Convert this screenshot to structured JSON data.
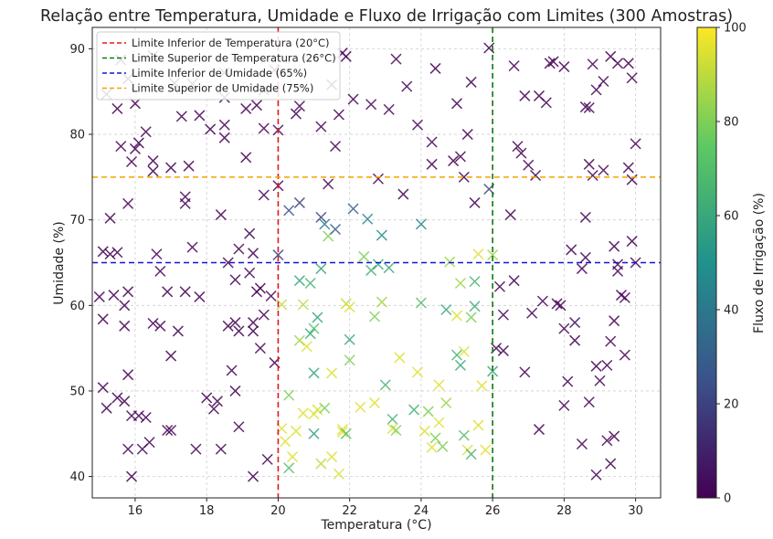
{
  "chart_data": {
    "type": "scatter",
    "title": "Relação entre Temperatura, Umidade e Fluxo de Irrigação com Limites (300 Amostras)",
    "xlabel": "Temperatura (°C)",
    "ylabel": "Umidade (%)",
    "xlim": [
      14.8,
      30.7
    ],
    "ylim": [
      37.5,
      92.5
    ],
    "xticks": [
      16,
      18,
      20,
      22,
      24,
      26,
      28,
      30
    ],
    "yticks": [
      40,
      50,
      60,
      70,
      80,
      90
    ],
    "grid": true,
    "marker": "x",
    "colorbar": {
      "label": "Fluxo de Irrigação (%)",
      "range": [
        0,
        100
      ],
      "ticks": [
        0,
        20,
        40,
        60,
        80,
        100
      ],
      "colormap": "viridis",
      "colors": [
        "#440154",
        "#3b528b",
        "#21918c",
        "#5ec962",
        "#fde725"
      ]
    },
    "legend": {
      "position": "top-left",
      "entries": [
        {
          "label": "Limite Inferior de Temperatura (20°C)",
          "color": "#e8141c"
        },
        {
          "label": "Limite Superior de Temperatura (26°C)",
          "color": "#0c7a0c"
        },
        {
          "label": "Limite Inferior de Umidade (65%)",
          "color": "#1414d4"
        },
        {
          "label": "Limite Superior de Umidade (75%)",
          "color": "#f5a400"
        }
      ]
    },
    "thresholds": {
      "temperature_lower": 20,
      "temperature_upper": 26,
      "humidity_lower": 65,
      "humidity_upper": 75
    },
    "points": [
      [
        15.0,
        61.0,
        0
      ],
      [
        15.1,
        50.4,
        0
      ],
      [
        15.1,
        58.4,
        0
      ],
      [
        15.1,
        66.3,
        0
      ],
      [
        15.2,
        84.7,
        0
      ],
      [
        15.2,
        48.0,
        0
      ],
      [
        15.3,
        66.0,
        0
      ],
      [
        15.3,
        70.2,
        0
      ],
      [
        15.4,
        61.2,
        0
      ],
      [
        15.5,
        83.0,
        0
      ],
      [
        15.5,
        49.2,
        0
      ],
      [
        15.5,
        66.2,
        0
      ],
      [
        15.6,
        78.6,
        0
      ],
      [
        15.7,
        48.8,
        0
      ],
      [
        15.7,
        60.0,
        0
      ],
      [
        15.7,
        57.6,
        0
      ],
      [
        15.8,
        43.2,
        0
      ],
      [
        15.8,
        51.9,
        0
      ],
      [
        15.8,
        71.9,
        0
      ],
      [
        15.8,
        61.6,
        0
      ],
      [
        15.9,
        47.1,
        0
      ],
      [
        15.9,
        40.0,
        0
      ],
      [
        15.9,
        76.8,
        0
      ],
      [
        16.0,
        83.6,
        0
      ],
      [
        16.0,
        78.3,
        0
      ],
      [
        16.1,
        79.0,
        0
      ],
      [
        16.1,
        47.1,
        0
      ],
      [
        16.2,
        43.2,
        0
      ],
      [
        16.3,
        46.9,
        0
      ],
      [
        16.3,
        80.3,
        0
      ],
      [
        16.4,
        44.0,
        0
      ],
      [
        16.5,
        57.9,
        0
      ],
      [
        16.5,
        76.9,
        0
      ],
      [
        16.5,
        75.7,
        0
      ],
      [
        16.6,
        66.0,
        0
      ],
      [
        16.7,
        64.0,
        0
      ],
      [
        16.7,
        57.6,
        0
      ],
      [
        16.9,
        45.4,
        0
      ],
      [
        16.9,
        61.6,
        0
      ],
      [
        17.0,
        54.1,
        0
      ],
      [
        17.0,
        76.1,
        0
      ],
      [
        17.0,
        45.4,
        0
      ],
      [
        17.2,
        57.0,
        0
      ],
      [
        17.3,
        82.1,
        0
      ],
      [
        17.4,
        71.9,
        0
      ],
      [
        17.4,
        72.7,
        0
      ],
      [
        17.4,
        61.6,
        0
      ],
      [
        17.5,
        76.3,
        0
      ],
      [
        17.6,
        66.8,
        0
      ],
      [
        17.7,
        43.2,
        0
      ],
      [
        17.8,
        82.2,
        0
      ],
      [
        17.8,
        61.0,
        0
      ],
      [
        18.0,
        49.2,
        0
      ],
      [
        18.1,
        80.6,
        0
      ],
      [
        18.2,
        47.9,
        0
      ],
      [
        18.3,
        48.8,
        0
      ],
      [
        18.4,
        70.6,
        0
      ],
      [
        18.4,
        43.2,
        0
      ],
      [
        18.5,
        84.3,
        0
      ],
      [
        18.5,
        81.1,
        0
      ],
      [
        18.5,
        79.6,
        0
      ],
      [
        18.6,
        57.6,
        0
      ],
      [
        18.6,
        65.0,
        0
      ],
      [
        18.7,
        52.4,
        0
      ],
      [
        18.8,
        58.0,
        0
      ],
      [
        18.8,
        50.0,
        0
      ],
      [
        18.8,
        63.0,
        0
      ],
      [
        18.9,
        45.8,
        0
      ],
      [
        18.9,
        57.0,
        0
      ],
      [
        18.9,
        66.6,
        0
      ],
      [
        19.1,
        83.0,
        0
      ],
      [
        19.1,
        77.3,
        0
      ],
      [
        19.2,
        68.4,
        0
      ],
      [
        19.2,
        63.8,
        0
      ],
      [
        19.3,
        40.0,
        0
      ],
      [
        19.3,
        57.0,
        0
      ],
      [
        19.3,
        66.1,
        0
      ],
      [
        19.3,
        58.0,
        0
      ],
      [
        19.4,
        61.6,
        0
      ],
      [
        19.5,
        55.0,
        0
      ],
      [
        19.5,
        62.0,
        0
      ],
      [
        19.6,
        72.9,
        0
      ],
      [
        19.6,
        80.7,
        0
      ],
      [
        19.6,
        58.9,
        0
      ],
      [
        19.7,
        42.0,
        0
      ],
      [
        19.8,
        61.1,
        0
      ],
      [
        19.9,
        53.3,
        0
      ],
      [
        20.0,
        65.9,
        20
      ],
      [
        20.0,
        74.0,
        0
      ],
      [
        20.0,
        80.5,
        0
      ],
      [
        20.1,
        60.1,
        90
      ],
      [
        20.1,
        45.6,
        95
      ],
      [
        20.2,
        44.1,
        95
      ],
      [
        20.3,
        71.1,
        25
      ],
      [
        20.3,
        41.0,
        70
      ],
      [
        20.3,
        49.5,
        80
      ],
      [
        20.4,
        42.3,
        95
      ],
      [
        20.5,
        45.3,
        95
      ],
      [
        20.6,
        62.9,
        60
      ],
      [
        20.6,
        55.9,
        85
      ],
      [
        20.6,
        72.0,
        20
      ],
      [
        20.7,
        60.1,
        90
      ],
      [
        20.7,
        47.4,
        95
      ],
      [
        20.8,
        55.2,
        95
      ],
      [
        20.9,
        56.7,
        60
      ],
      [
        20.9,
        62.6,
        65
      ],
      [
        21.0,
        57.3,
        70
      ],
      [
        21.0,
        47.3,
        95
      ],
      [
        21.0,
        45.0,
        55
      ],
      [
        21.0,
        52.1,
        60
      ],
      [
        21.1,
        47.8,
        95
      ],
      [
        21.1,
        58.6,
        60
      ],
      [
        21.2,
        64.3,
        60
      ],
      [
        21.2,
        70.3,
        20
      ],
      [
        21.2,
        41.5,
        90
      ],
      [
        21.3,
        48.0,
        80
      ],
      [
        21.3,
        69.5,
        40
      ],
      [
        21.4,
        68.1,
        80
      ],
      [
        21.4,
        74.2,
        0
      ],
      [
        21.5,
        52.1,
        95
      ],
      [
        21.5,
        42.3,
        95
      ],
      [
        21.6,
        68.9,
        30
      ],
      [
        21.7,
        40.3,
        95
      ],
      [
        21.8,
        45.5,
        95
      ],
      [
        21.8,
        45.2,
        95
      ],
      [
        21.9,
        45.0,
        70
      ],
      [
        21.9,
        60.2,
        90
      ],
      [
        22.0,
        56.0,
        60
      ],
      [
        22.0,
        53.6,
        80
      ],
      [
        22.0,
        59.8,
        95
      ],
      [
        22.1,
        71.3,
        30
      ],
      [
        22.3,
        48.1,
        95
      ],
      [
        22.4,
        65.7,
        80
      ],
      [
        22.5,
        70.1,
        45
      ],
      [
        22.6,
        64.1,
        65
      ],
      [
        22.7,
        48.6,
        95
      ],
      [
        22.7,
        58.7,
        80
      ],
      [
        22.8,
        64.8,
        60
      ],
      [
        22.8,
        74.8,
        0
      ],
      [
        22.9,
        60.4,
        85
      ],
      [
        22.9,
        68.2,
        50
      ],
      [
        23.0,
        50.7,
        65
      ],
      [
        23.1,
        64.4,
        60
      ],
      [
        23.2,
        46.7,
        65
      ],
      [
        23.2,
        45.6,
        95
      ],
      [
        23.3,
        45.4,
        80
      ],
      [
        23.4,
        53.9,
        95
      ],
      [
        23.5,
        73.0,
        0
      ],
      [
        23.8,
        47.8,
        65
      ],
      [
        23.9,
        52.2,
        95
      ],
      [
        24.0,
        60.3,
        70
      ],
      [
        24.0,
        69.5,
        45
      ],
      [
        24.1,
        45.3,
        95
      ],
      [
        24.2,
        47.6,
        80
      ],
      [
        24.3,
        43.4,
        95
      ],
      [
        24.4,
        44.5,
        80
      ],
      [
        24.5,
        50.7,
        95
      ],
      [
        24.5,
        46.3,
        95
      ],
      [
        24.6,
        43.5,
        80
      ],
      [
        24.7,
        59.5,
        60
      ],
      [
        24.7,
        48.6,
        85
      ],
      [
        24.8,
        65.1,
        85
      ],
      [
        25.0,
        58.8,
        95
      ],
      [
        25.0,
        54.2,
        65
      ],
      [
        25.1,
        62.6,
        85
      ],
      [
        25.1,
        53.0,
        60
      ],
      [
        25.2,
        54.6,
        95
      ],
      [
        25.2,
        44.8,
        70
      ],
      [
        25.3,
        43.1,
        95
      ],
      [
        25.4,
        42.6,
        65
      ],
      [
        25.4,
        58.6,
        80
      ],
      [
        25.5,
        59.9,
        60
      ],
      [
        25.5,
        62.8,
        65
      ],
      [
        25.6,
        66.0,
        95
      ],
      [
        25.6,
        46.0,
        95
      ],
      [
        25.7,
        50.6,
        95
      ],
      [
        25.8,
        43.1,
        95
      ],
      [
        25.9,
        73.6,
        20
      ],
      [
        26.0,
        52.3,
        60
      ],
      [
        26.0,
        65.9,
        85
      ],
      [
        26.1,
        55.0,
        0
      ],
      [
        26.2,
        62.2,
        0
      ],
      [
        26.3,
        54.7,
        0
      ],
      [
        26.3,
        58.9,
        0
      ],
      [
        26.5,
        70.6,
        0
      ],
      [
        26.6,
        62.9,
        0
      ],
      [
        26.7,
        78.6,
        0
      ],
      [
        26.8,
        77.8,
        0
      ],
      [
        26.9,
        52.2,
        0
      ],
      [
        27.0,
        76.4,
        0
      ],
      [
        27.1,
        59.1,
        0
      ],
      [
        27.2,
        75.2,
        0
      ],
      [
        27.3,
        45.5,
        0
      ],
      [
        27.4,
        60.5,
        0
      ],
      [
        27.6,
        88.3,
        0
      ],
      [
        27.8,
        60.2,
        0
      ],
      [
        27.9,
        60.0,
        0
      ],
      [
        28.0,
        57.3,
        0
      ],
      [
        28.0,
        48.3,
        0
      ],
      [
        28.1,
        51.1,
        0
      ],
      [
        28.2,
        66.5,
        0
      ],
      [
        28.3,
        55.9,
        0
      ],
      [
        28.3,
        58.0,
        5
      ],
      [
        28.5,
        43.8,
        0
      ],
      [
        28.5,
        64.3,
        0
      ],
      [
        28.6,
        65.6,
        0
      ],
      [
        28.6,
        70.3,
        0
      ],
      [
        28.7,
        48.7,
        0
      ],
      [
        28.7,
        76.5,
        0
      ],
      [
        28.8,
        75.2,
        0
      ],
      [
        28.9,
        52.9,
        0
      ],
      [
        28.9,
        40.2,
        0
      ],
      [
        29.0,
        51.2,
        0
      ],
      [
        29.1,
        75.8,
        0
      ],
      [
        29.2,
        44.2,
        0
      ],
      [
        29.2,
        53.0,
        0
      ],
      [
        29.3,
        41.5,
        0
      ],
      [
        29.3,
        55.8,
        0
      ],
      [
        29.4,
        58.2,
        0
      ],
      [
        29.4,
        66.9,
        0
      ],
      [
        29.4,
        44.7,
        0
      ],
      [
        29.5,
        64.0,
        0
      ],
      [
        29.5,
        64.8,
        0
      ],
      [
        29.6,
        61.2,
        0
      ],
      [
        29.7,
        54.2,
        0
      ],
      [
        29.7,
        60.9,
        0
      ],
      [
        29.8,
        76.1,
        0
      ],
      [
        29.9,
        74.7,
        0
      ],
      [
        29.9,
        67.5,
        0
      ],
      [
        30.0,
        65.0,
        0
      ],
      [
        30.0,
        78.9,
        0
      ],
      [
        29.9,
        86.6,
        0
      ],
      [
        29.8,
        88.3,
        0
      ],
      [
        29.5,
        88.3,
        0
      ],
      [
        29.3,
        89.1,
        0
      ],
      [
        29.1,
        86.2,
        0
      ],
      [
        28.9,
        85.2,
        0
      ],
      [
        28.7,
        83.1,
        0
      ],
      [
        28.6,
        83.2,
        0
      ],
      [
        28.8,
        88.2,
        0
      ],
      [
        28.0,
        87.9,
        0
      ],
      [
        27.7,
        88.5,
        0
      ],
      [
        27.5,
        83.7,
        0
      ],
      [
        27.3,
        84.5,
        0
      ],
      [
        26.9,
        84.5,
        0
      ],
      [
        26.6,
        88.0,
        0
      ],
      [
        25.9,
        90.1,
        0
      ],
      [
        25.4,
        86.1,
        0
      ],
      [
        25.3,
        80.0,
        0
      ],
      [
        25.1,
        77.4,
        0
      ],
      [
        25.0,
        83.6,
        0
      ],
      [
        24.4,
        87.7,
        0
      ],
      [
        24.3,
        79.1,
        0
      ],
      [
        24.3,
        76.5,
        0
      ],
      [
        23.9,
        81.1,
        0
      ],
      [
        23.6,
        85.6,
        0
      ],
      [
        23.3,
        88.8,
        0
      ],
      [
        23.1,
        82.9,
        0
      ],
      [
        22.6,
        83.5,
        0
      ],
      [
        22.1,
        84.1,
        0
      ],
      [
        21.8,
        89.5,
        0
      ],
      [
        21.7,
        82.3,
        0
      ],
      [
        21.6,
        78.6,
        0
      ],
      [
        21.5,
        85.8,
        0
      ],
      [
        21.2,
        80.9,
        0
      ],
      [
        20.6,
        83.3,
        0
      ],
      [
        20.5,
        82.4,
        0
      ],
      [
        19.9,
        87.5,
        0
      ],
      [
        19.6,
        85.2,
        0
      ],
      [
        19.4,
        83.4,
        0
      ],
      [
        18.5,
        87.2,
        0
      ],
      [
        17.6,
        85.9,
        0
      ],
      [
        17.1,
        86.0,
        0
      ],
      [
        16.5,
        89.2,
        0
      ],
      [
        15.8,
        86.5,
        0
      ],
      [
        15.6,
        88.7,
        0
      ],
      [
        21.9,
        89.1,
        0
      ],
      [
        24.9,
        76.9,
        0
      ],
      [
        25.5,
        72.0,
        0
      ],
      [
        25.2,
        75.0,
        0
      ]
    ]
  }
}
